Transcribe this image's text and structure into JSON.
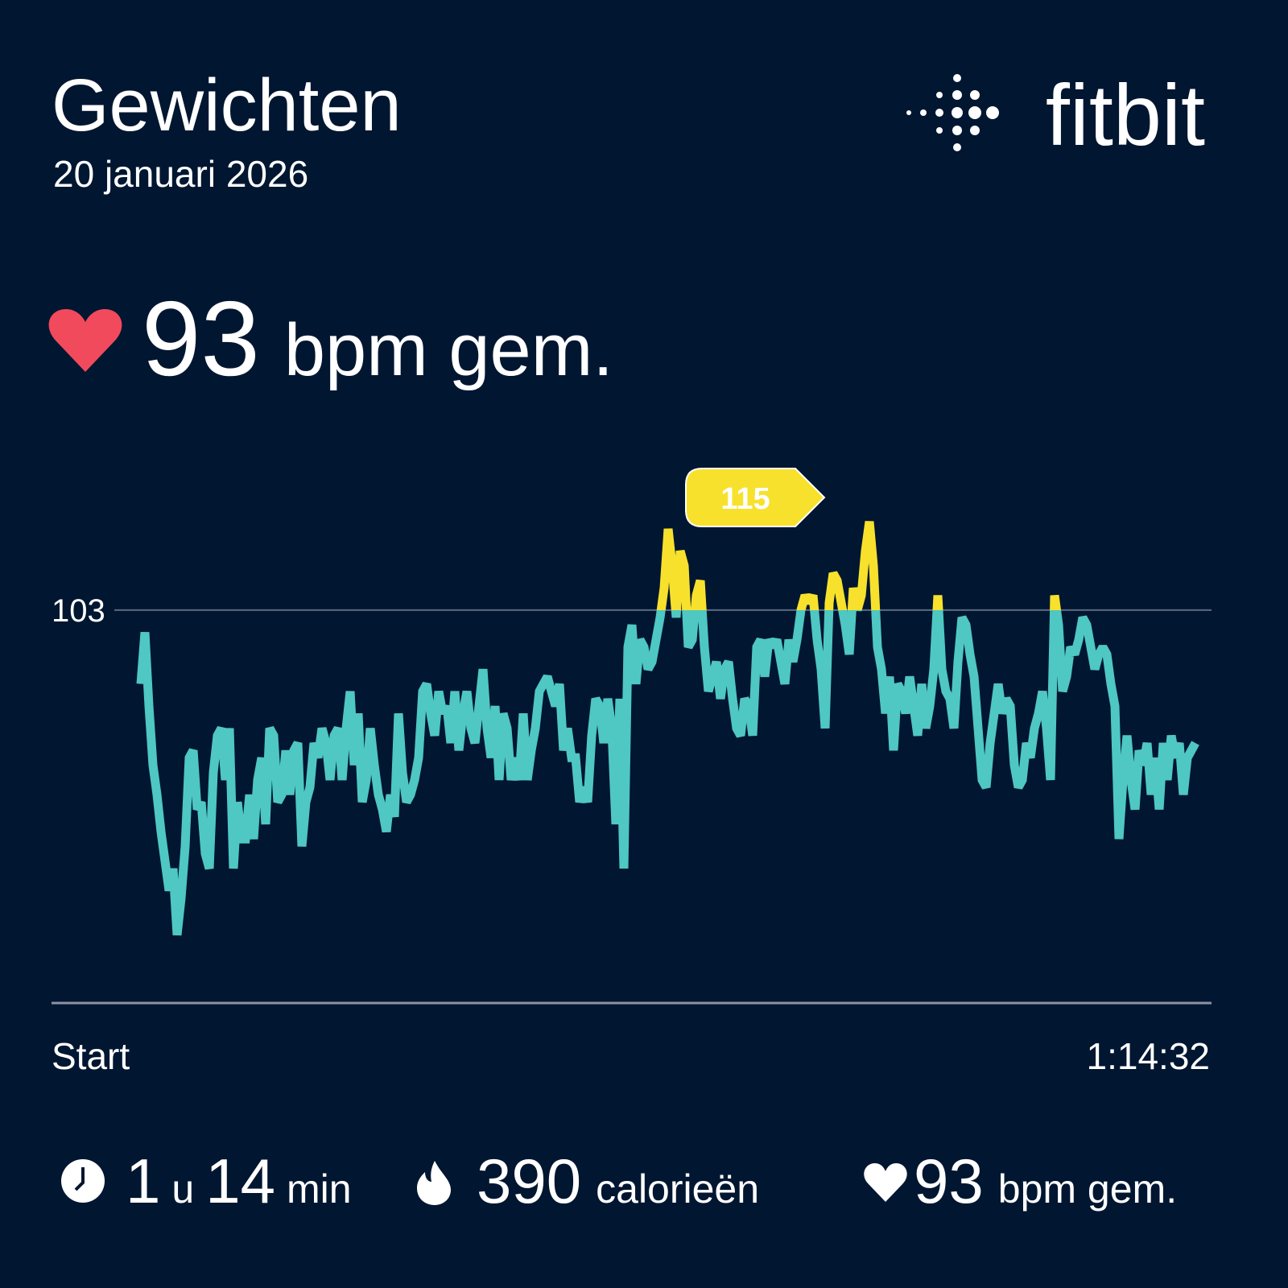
{
  "header": {
    "title": "Gewichten",
    "date": "20 januari 2026",
    "brand": "fitbit"
  },
  "summary": {
    "value": 93,
    "unit": "bpm gem."
  },
  "chart_data": {
    "type": "line",
    "color": "#4fc7c3",
    "highlight_color": "#f7e12c",
    "max_label": 115,
    "ylim": [
      50,
      120
    ],
    "yticks": [
      103
    ],
    "grid": true,
    "xlim": [
      0,
      4472
    ],
    "xticks": [
      {
        "value": 0,
        "label": "Start"
      },
      {
        "value": 4472,
        "label": "1:14:32"
      }
    ],
    "values": [
      93,
      100,
      90,
      82,
      78,
      73,
      69,
      65,
      68,
      59,
      64,
      71,
      83,
      84,
      76,
      77,
      70,
      68,
      81,
      86,
      87,
      80,
      87,
      68,
      77,
      72,
      72,
      78,
      72,
      80,
      83,
      74,
      87,
      86,
      77,
      78,
      84,
      78,
      84,
      85,
      71,
      77,
      79,
      85,
      83,
      87,
      85,
      80,
      86,
      87,
      80,
      87,
      92,
      82,
      89,
      77,
      80,
      87,
      82,
      78,
      76,
      73,
      78,
      75,
      89,
      81,
      77,
      78,
      80,
      83,
      92,
      93,
      89,
      86,
      92,
      89,
      90,
      85,
      92,
      84,
      89,
      92,
      87,
      85,
      90,
      95,
      87,
      83,
      90,
      80,
      89,
      87,
      80,
      83,
      80,
      89,
      80,
      84,
      87,
      92,
      93,
      94,
      92,
      90,
      93,
      84,
      87,
      83,
      83,
      77,
      79,
      77,
      86,
      91,
      90,
      85,
      91,
      87,
      74,
      91,
      68,
      98,
      101,
      93,
      99,
      98,
      95,
      96,
      99,
      102,
      106,
      114,
      109,
      102,
      111,
      109,
      98,
      99,
      105,
      107,
      98,
      92,
      94,
      96,
      91,
      95,
      96,
      91,
      87,
      86,
      91,
      90,
      86,
      98,
      99,
      94,
      99,
      98,
      99,
      96,
      93,
      99,
      96,
      99,
      103,
      105,
      104,
      105,
      99,
      95,
      87,
      104,
      108,
      107,
      104,
      101,
      97,
      106,
      103,
      105,
      111,
      115,
      109,
      98,
      95,
      89,
      94,
      84,
      93,
      92,
      89,
      94,
      90,
      86,
      93,
      87,
      90,
      95,
      105,
      95,
      92,
      91,
      87,
      96,
      102,
      101,
      97,
      94,
      87,
      80,
      79,
      85,
      89,
      93,
      89,
      91,
      90,
      82,
      79,
      80,
      85,
      83,
      87,
      89,
      92,
      87,
      80,
      105,
      101,
      92,
      94,
      98,
      97,
      99,
      102,
      101,
      98,
      95,
      97,
      98,
      97,
      93,
      90,
      72,
      80,
      86,
      80,
      76,
      84,
      82,
      85,
      78,
      83,
      76,
      85,
      80,
      86,
      83,
      85,
      78,
      83,
      84,
      85
    ]
  },
  "stats": {
    "duration": {
      "hours": 1,
      "hours_unit": "u",
      "minutes": 14,
      "minutes_unit": "min"
    },
    "calories": {
      "value": 390,
      "unit": "calorieën"
    },
    "heart_rate": {
      "value": 93,
      "unit": "bpm gem."
    }
  }
}
